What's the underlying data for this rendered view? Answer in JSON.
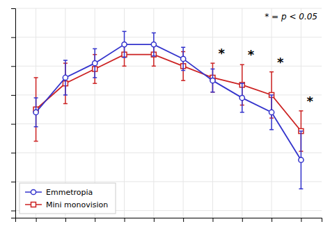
{
  "chart_data": {
    "type": "line",
    "x": [
      -3.0,
      -2.5,
      -2.0,
      -1.5,
      -1.0,
      -0.5,
      0.0,
      0.5,
      1.0,
      1.5
    ],
    "series": [
      {
        "name": "Emmetropia",
        "color": "#3333cc",
        "marker": "circle",
        "values": [
          0.08,
          0.32,
          0.42,
          0.55,
          0.55,
          0.45,
          0.3,
          0.18,
          0.08,
          -0.25
        ],
        "errors": [
          0.1,
          0.12,
          0.1,
          0.09,
          0.08,
          0.08,
          0.08,
          0.1,
          0.12,
          0.2
        ]
      },
      {
        "name": "Mini monovision",
        "color": "#cc2222",
        "marker": "square",
        "values": [
          0.1,
          0.28,
          0.38,
          0.48,
          0.48,
          0.4,
          0.32,
          0.27,
          0.2,
          -0.05
        ],
        "errors": [
          0.22,
          0.14,
          0.1,
          0.08,
          0.08,
          0.1,
          0.1,
          0.14,
          0.16,
          0.14
        ]
      }
    ],
    "annotations": [
      {
        "text": "* = p < 0.05"
      },
      {
        "text": "*",
        "x": 0.0
      },
      {
        "text": "*",
        "x": 0.5
      },
      {
        "text": "*",
        "x": 1.0
      },
      {
        "text": "*",
        "x": 1.5
      }
    ],
    "xlim": [
      -3.35,
      1.85
    ],
    "ylim": [
      -0.65,
      0.8
    ],
    "xticks": [
      -3.0,
      -2.5,
      -2.0,
      -1.5,
      -1.0,
      -0.5,
      0.0,
      0.5,
      1.0,
      1.5
    ],
    "yticks": [
      -0.6,
      -0.4,
      -0.2,
      0.0,
      0.2,
      0.4,
      0.6,
      0.8
    ],
    "tick_labels": false,
    "grid": true,
    "legend": "lower left"
  }
}
